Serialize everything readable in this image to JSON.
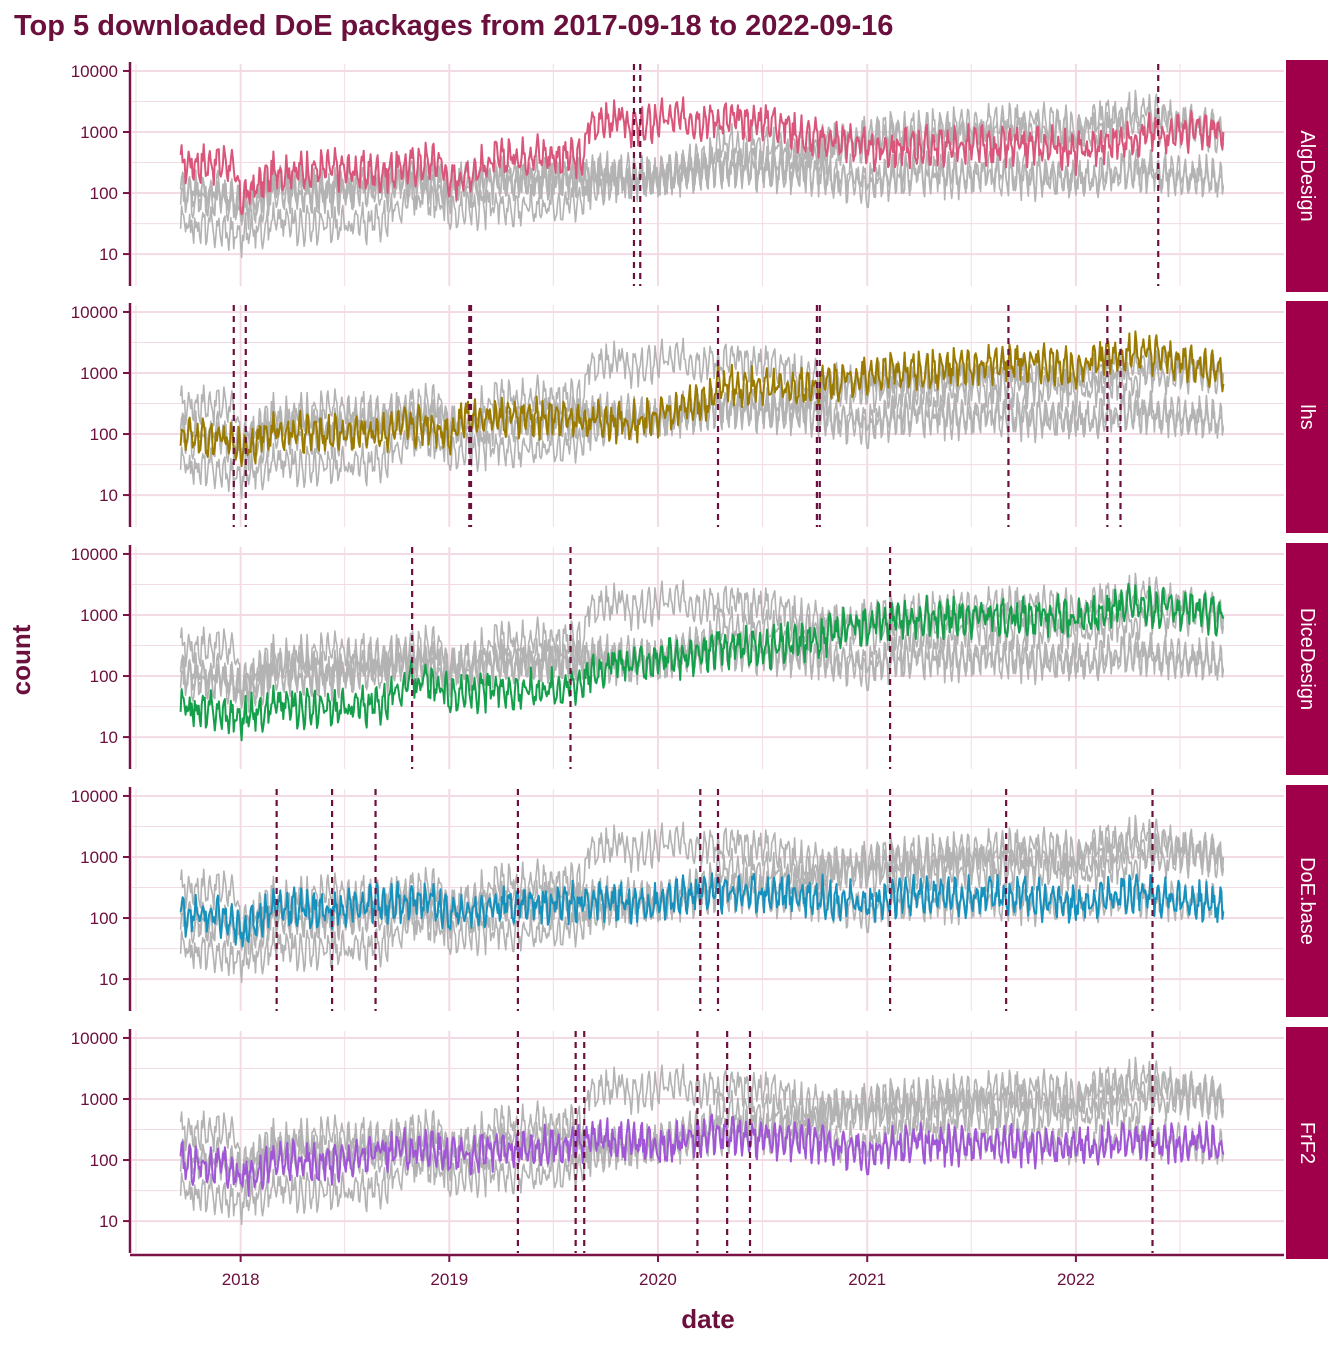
{
  "chart_data": {
    "type": "line",
    "title": "Top 5 downloaded DoE packages from 2017-09-18 to 2022-09-16",
    "xlabel": "date",
    "ylabel": "count",
    "y_scale": "log10",
    "ylim": [
      3,
      13000
    ],
    "yticks": [
      10,
      100,
      1000,
      10000
    ],
    "ytick_labels": [
      "10",
      "100",
      "1000",
      "10000"
    ],
    "xlim": [
      "2017-06-25",
      "2022-12-31"
    ],
    "xticks": [
      "2018-01-01",
      "2019-01-01",
      "2020-01-01",
      "2021-01-01",
      "2022-01-01"
    ],
    "xtick_labels": [
      "2018",
      "2019",
      "2020",
      "2021",
      "2022"
    ],
    "grid": true,
    "legend": "none",
    "colors": {
      "text": "#6b0f3c",
      "axis": "#7a1245",
      "grid": "#f3dbe6",
      "strip_fill": "#a0004a",
      "strip_text": "#ffffff",
      "background_series": "#b3b3b3",
      "vline": "#6b0f3c"
    },
    "panels": [
      {
        "name": "AlgDesign",
        "color": "#d9557a",
        "series": [
          {
            "x": "2017-09-18",
            "y": 300
          },
          {
            "x": "2017-12-15",
            "y": 320
          },
          {
            "x": "2018-01-01",
            "y": 80
          },
          {
            "x": "2018-03-01",
            "y": 220
          },
          {
            "x": "2018-06-01",
            "y": 250
          },
          {
            "x": "2018-09-01",
            "y": 220
          },
          {
            "x": "2018-12-15",
            "y": 350
          },
          {
            "x": "2019-01-01",
            "y": 150
          },
          {
            "x": "2019-04-01",
            "y": 380
          },
          {
            "x": "2019-06-01",
            "y": 450
          },
          {
            "x": "2019-08-25",
            "y": 350
          },
          {
            "x": "2019-09-01",
            "y": 1400
          },
          {
            "x": "2019-11-01",
            "y": 1500
          },
          {
            "x": "2019-12-01",
            "y": 1100
          },
          {
            "x": "2020-01-01",
            "y": 1600
          },
          {
            "x": "2020-03-01",
            "y": 1700
          },
          {
            "x": "2020-06-01",
            "y": 1500
          },
          {
            "x": "2020-08-01",
            "y": 1500
          },
          {
            "x": "2020-09-15",
            "y": 800
          },
          {
            "x": "2020-12-01",
            "y": 700
          },
          {
            "x": "2021-01-01",
            "y": 500
          },
          {
            "x": "2021-03-01",
            "y": 550
          },
          {
            "x": "2021-06-01",
            "y": 600
          },
          {
            "x": "2021-09-01",
            "y": 550
          },
          {
            "x": "2021-12-01",
            "y": 600
          },
          {
            "x": "2022-01-01",
            "y": 450
          },
          {
            "x": "2022-04-01",
            "y": 800
          },
          {
            "x": "2022-06-01",
            "y": 1000
          },
          {
            "x": "2022-09-16",
            "y": 1000
          }
        ],
        "vlines": [
          "2019-11-20",
          "2019-12-01",
          "2022-05-25"
        ]
      },
      {
        "name": "lhs",
        "color": "#9a7b00",
        "series": [
          {
            "x": "2017-09-18",
            "y": 90
          },
          {
            "x": "2017-12-01",
            "y": 80
          },
          {
            "x": "2018-01-01",
            "y": 60
          },
          {
            "x": "2018-03-01",
            "y": 110
          },
          {
            "x": "2018-06-01",
            "y": 100
          },
          {
            "x": "2018-09-01",
            "y": 110
          },
          {
            "x": "2018-12-01",
            "y": 150
          },
          {
            "x": "2019-01-01",
            "y": 100
          },
          {
            "x": "2019-02-01",
            "y": 200
          },
          {
            "x": "2019-06-01",
            "y": 180
          },
          {
            "x": "2019-09-01",
            "y": 170
          },
          {
            "x": "2019-12-01",
            "y": 160
          },
          {
            "x": "2020-01-01",
            "y": 200
          },
          {
            "x": "2020-04-01",
            "y": 350
          },
          {
            "x": "2020-04-15",
            "y": 650
          },
          {
            "x": "2020-08-01",
            "y": 550
          },
          {
            "x": "2020-10-01",
            "y": 650
          },
          {
            "x": "2021-01-01",
            "y": 950
          },
          {
            "x": "2021-04-01",
            "y": 1100
          },
          {
            "x": "2021-07-01",
            "y": 1200
          },
          {
            "x": "2021-10-01",
            "y": 1500
          },
          {
            "x": "2022-01-01",
            "y": 1300
          },
          {
            "x": "2022-04-01",
            "y": 2200
          },
          {
            "x": "2022-09-16",
            "y": 1100
          }
        ],
        "vlines": [
          "2017-12-20",
          "2018-01-10",
          "2019-02-05",
          "2019-02-08",
          "2020-04-15",
          "2020-10-05",
          "2020-10-10",
          "2021-09-05",
          "2022-02-25",
          "2022-03-20"
        ]
      },
      {
        "name": "DiceDesign",
        "color": "#14a04a",
        "series": [
          {
            "x": "2017-09-18",
            "y": 30
          },
          {
            "x": "2017-12-01",
            "y": 25
          },
          {
            "x": "2018-01-01",
            "y": 20
          },
          {
            "x": "2018-03-01",
            "y": 35
          },
          {
            "x": "2018-06-01",
            "y": 28
          },
          {
            "x": "2018-09-01",
            "y": 35
          },
          {
            "x": "2018-11-01",
            "y": 90
          },
          {
            "x": "2019-01-01",
            "y": 50
          },
          {
            "x": "2019-04-01",
            "y": 60
          },
          {
            "x": "2019-07-01",
            "y": 65
          },
          {
            "x": "2019-08-01",
            "y": 70
          },
          {
            "x": "2019-10-01",
            "y": 150
          },
          {
            "x": "2020-01-01",
            "y": 180
          },
          {
            "x": "2020-03-01",
            "y": 200
          },
          {
            "x": "2020-04-15",
            "y": 300
          },
          {
            "x": "2020-07-01",
            "y": 280
          },
          {
            "x": "2020-10-01",
            "y": 400
          },
          {
            "x": "2021-01-01",
            "y": 750
          },
          {
            "x": "2021-02-15",
            "y": 800
          },
          {
            "x": "2021-06-01",
            "y": 950
          },
          {
            "x": "2021-09-01",
            "y": 900
          },
          {
            "x": "2021-12-01",
            "y": 1000
          },
          {
            "x": "2022-01-01",
            "y": 800
          },
          {
            "x": "2022-04-01",
            "y": 1500
          },
          {
            "x": "2022-09-16",
            "y": 1000
          }
        ],
        "vlines": [
          "2018-10-28",
          "2019-08-01",
          "2021-02-10"
        ]
      },
      {
        "name": "DoE.base",
        "color": "#1591bd",
        "series": [
          {
            "x": "2017-09-18",
            "y": 120
          },
          {
            "x": "2017-12-01",
            "y": 100
          },
          {
            "x": "2018-01-01",
            "y": 60
          },
          {
            "x": "2018-03-01",
            "y": 160
          },
          {
            "x": "2018-06-01",
            "y": 130
          },
          {
            "x": "2018-09-01",
            "y": 170
          },
          {
            "x": "2018-12-01",
            "y": 200
          },
          {
            "x": "2019-01-01",
            "y": 110
          },
          {
            "x": "2019-04-01",
            "y": 170
          },
          {
            "x": "2019-07-01",
            "y": 180
          },
          {
            "x": "2019-10-01",
            "y": 180
          },
          {
            "x": "2020-01-01",
            "y": 170
          },
          {
            "x": "2020-04-01",
            "y": 280
          },
          {
            "x": "2020-07-01",
            "y": 260
          },
          {
            "x": "2020-10-01",
            "y": 230
          },
          {
            "x": "2021-01-01",
            "y": 170
          },
          {
            "x": "2021-04-01",
            "y": 240
          },
          {
            "x": "2021-07-01",
            "y": 230
          },
          {
            "x": "2021-10-01",
            "y": 220
          },
          {
            "x": "2022-01-01",
            "y": 170
          },
          {
            "x": "2022-04-01",
            "y": 280
          },
          {
            "x": "2022-09-16",
            "y": 160
          }
        ],
        "vlines": [
          "2018-03-05",
          "2018-06-10",
          "2018-08-25",
          "2019-05-01",
          "2020-03-15",
          "2020-04-15",
          "2021-02-10",
          "2021-09-01",
          "2022-05-15"
        ]
      },
      {
        "name": "FrF2",
        "color": "#a056d6",
        "series": [
          {
            "x": "2017-09-18",
            "y": 90
          },
          {
            "x": "2017-12-01",
            "y": 80
          },
          {
            "x": "2018-01-01",
            "y": 50
          },
          {
            "x": "2018-03-01",
            "y": 95
          },
          {
            "x": "2018-06-01",
            "y": 90
          },
          {
            "x": "2018-09-01",
            "y": 130
          },
          {
            "x": "2018-12-01",
            "y": 160
          },
          {
            "x": "2019-01-01",
            "y": 110
          },
          {
            "x": "2019-04-01",
            "y": 150
          },
          {
            "x": "2019-07-01",
            "y": 170
          },
          {
            "x": "2019-10-01",
            "y": 230
          },
          {
            "x": "2020-01-01",
            "y": 170
          },
          {
            "x": "2020-04-01",
            "y": 260
          },
          {
            "x": "2020-07-01",
            "y": 220
          },
          {
            "x": "2020-10-01",
            "y": 200
          },
          {
            "x": "2021-01-01",
            "y": 130
          },
          {
            "x": "2021-04-01",
            "y": 190
          },
          {
            "x": "2021-07-01",
            "y": 180
          },
          {
            "x": "2021-10-01",
            "y": 170
          },
          {
            "x": "2022-01-01",
            "y": 150
          },
          {
            "x": "2022-04-01",
            "y": 200
          },
          {
            "x": "2022-09-16",
            "y": 180
          }
        ],
        "vlines": [
          "2019-05-01",
          "2019-08-10",
          "2019-08-25",
          "2020-03-10",
          "2020-05-01",
          "2020-06-10",
          "2022-05-15"
        ]
      }
    ]
  }
}
